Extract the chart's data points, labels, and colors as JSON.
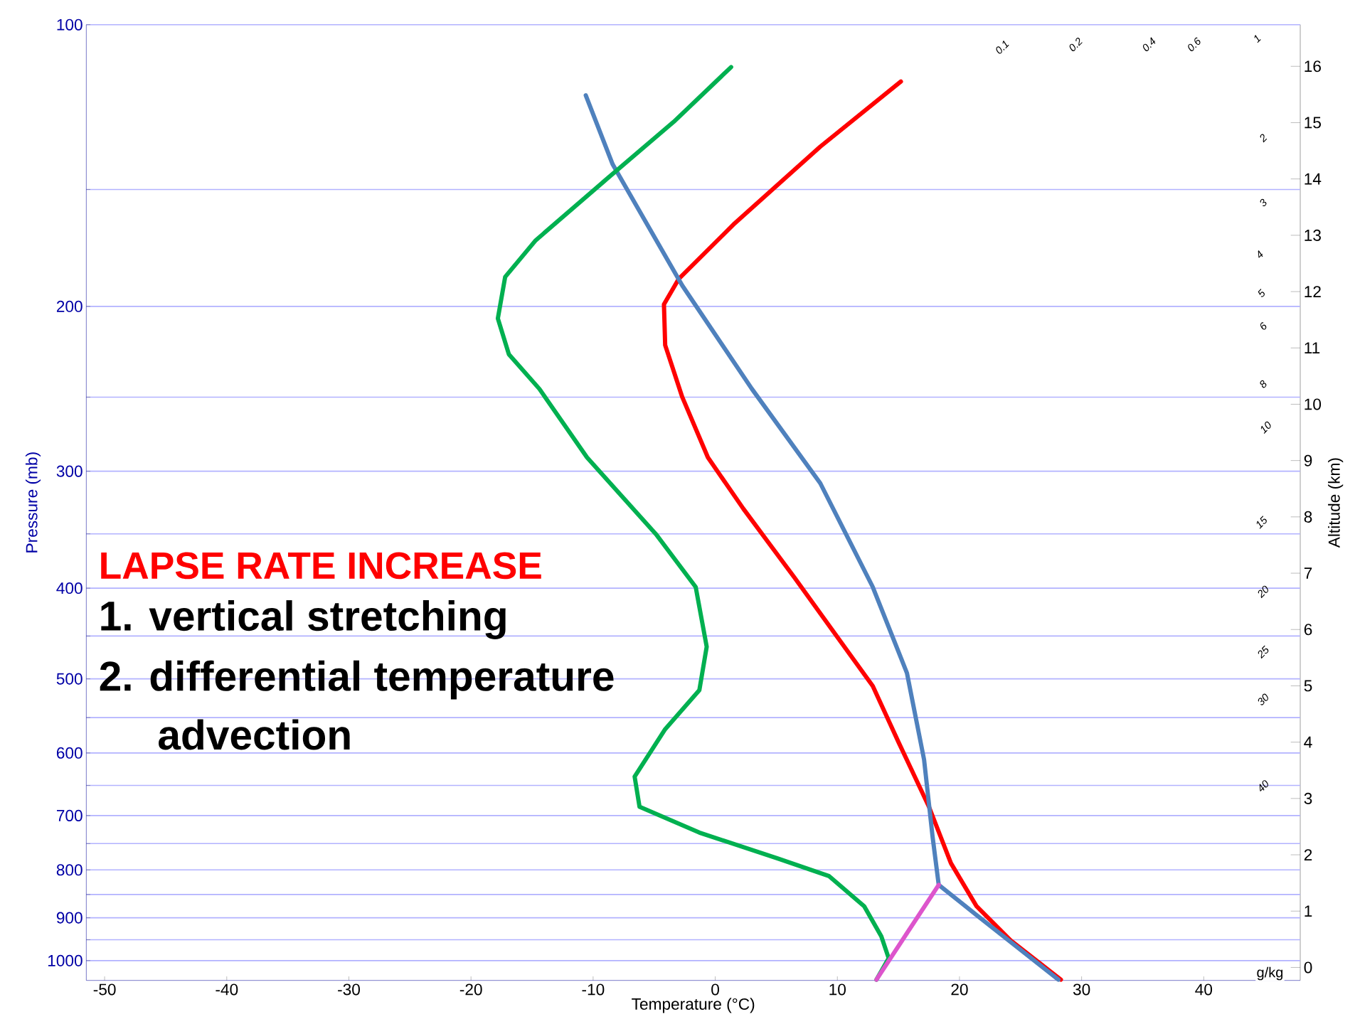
{
  "chart_data": {
    "type": "line",
    "xlabel": "Temperature (°C)",
    "ylabel": "Pressure (mb)",
    "y2label": "Altitude (km)",
    "log": "y",
    "grid": "y",
    "xlim": [
      -51.5,
      47.9
    ],
    "xticks": [
      -50,
      -40,
      -30,
      -20,
      -10,
      0,
      10,
      20,
      30,
      40
    ],
    "ylim": [
      1050,
      100
    ],
    "yticks": [
      100,
      {
        "value": 150,
        "label": null
      },
      200,
      {
        "value": 250,
        "label": null
      },
      300,
      {
        "value": 350,
        "label": null
      },
      400,
      {
        "value": 450,
        "label": null
      },
      500,
      {
        "value": 550,
        "label": null
      },
      600,
      {
        "value": 650,
        "label": null
      },
      700,
      {
        "value": 750,
        "label": null
      },
      800,
      {
        "value": 850,
        "label": null
      },
      900,
      {
        "value": 950,
        "label": null
      },
      1000
    ],
    "y2lim": [
      -0.23,
      16.74
    ],
    "y2ticks": [
      0,
      1,
      2,
      3,
      4,
      5,
      6,
      7,
      8,
      9,
      10,
      11,
      12,
      13,
      14,
      15,
      16
    ],
    "series": [
      {
        "color": "#ff0000",
        "x": [
          28.3,
          24.2,
          21.4,
          19.3,
          17.5,
          15.0,
          12.9,
          10.1,
          6.5,
          2.3,
          -0.6,
          -2.7,
          -4.1,
          -4.2,
          -3.0,
          1.6,
          8.6,
          15.2
        ],
        "values": [
          1048,
          952,
          875,
          787,
          685,
          584,
          509,
          453,
          390,
          329,
          290,
          250,
          220,
          199,
          187,
          163,
          135,
          115
        ]
      },
      {
        "color": "#4f81bd",
        "x": [
          28.1,
          21.4,
          18.3,
          17.8,
          17.1,
          15.7,
          12.9,
          8.6,
          3.0,
          -2.7,
          -8.4,
          -10.6
        ],
        "values": [
          1048,
          894,
          830,
          738,
          610,
          493,
          399,
          309,
          245,
          190,
          141,
          119
        ]
      },
      {
        "color": "#00b050",
        "x": [
          13.2,
          14.2,
          13.6,
          12.2,
          9.3,
          5.1,
          -1.3,
          -6.2,
          -6.6,
          -4.1,
          -1.3,
          -0.7,
          -1.6,
          -4.8,
          -10.5,
          -14.4,
          -16.9,
          -17.8,
          -17.2,
          -14.7,
          -9.1,
          -3.4,
          1.3
        ],
        "values": [
          1048,
          994,
          942,
          875,
          812,
          778,
          730,
          685,
          636,
          566,
          514,
          462,
          399,
          351,
          290,
          245,
          225,
          206,
          186,
          170,
          147,
          127,
          111
        ]
      },
      {
        "color": "#dd55cc",
        "x": [
          13.2,
          18.3
        ],
        "values": [
          1048,
          830
        ]
      }
    ],
    "annotations": [
      "LAPSE RATE INCREASE",
      "1. vertical stretching",
      "2. differential temperature advection",
      "0.1",
      "0.2",
      "0.4",
      "0.6",
      "1",
      "2",
      "3",
      "4",
      "5",
      "6",
      "8",
      "10",
      "15",
      "20",
      "25",
      "30",
      "40",
      "g/kg"
    ]
  }
}
